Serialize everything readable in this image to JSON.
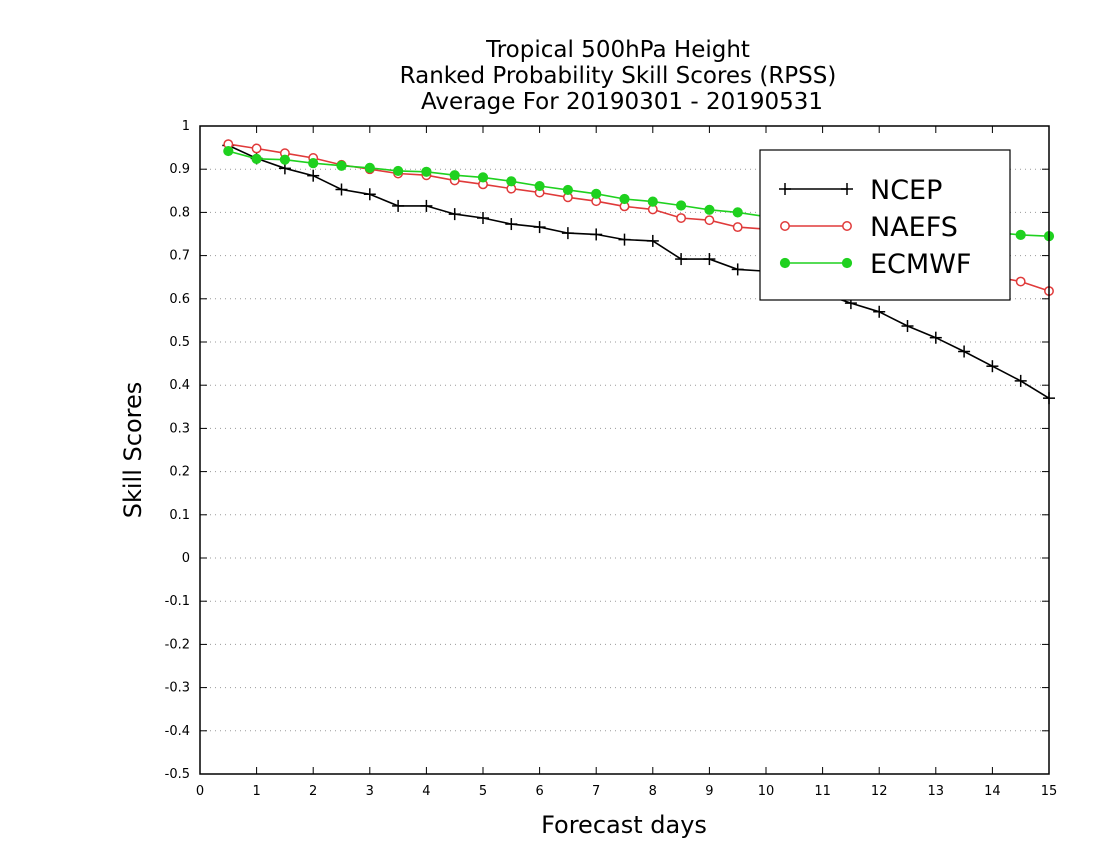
{
  "chart_data": {
    "type": "line",
    "title": [
      "Tropical 500hPa Height",
      "Ranked Probability Skill Scores (RPSS)",
      "Average For 20190301 - 20190531"
    ],
    "xlabel": "Forecast days",
    "ylabel": "Skill Scores",
    "xlim": [
      0,
      15
    ],
    "ylim": [
      -0.5,
      1
    ],
    "xticks": [
      0,
      1,
      2,
      3,
      4,
      5,
      6,
      7,
      8,
      9,
      10,
      11,
      12,
      13,
      14,
      15
    ],
    "xtick_labels": [
      "0",
      "1",
      "2",
      "3",
      "4",
      "5",
      "6",
      "7",
      "8",
      "9",
      "10",
      "11",
      "12",
      "13",
      "14",
      "15"
    ],
    "yticks": [
      1,
      0.9,
      0.8,
      0.7,
      0.6,
      0.5,
      0.4,
      0.3,
      0.2,
      0.1,
      0,
      -0.1,
      -0.2,
      -0.3,
      -0.4,
      -0.5
    ],
    "ytick_labels": [
      "1",
      "0.9",
      "0.8",
      "0.7",
      "0.6",
      "0.5",
      "0.4",
      "0.3",
      "0.2",
      "0.1",
      "0",
      "-0.1",
      "-0.2",
      "-0.3",
      "-0.4",
      "-0.5"
    ],
    "grid": "horizontal dotted",
    "legend_position": "top-right",
    "x": [
      0.5,
      1,
      1.5,
      2,
      2.5,
      3,
      3.5,
      4,
      4.5,
      5,
      5.5,
      6,
      6.5,
      7,
      7.5,
      8,
      8.5,
      9,
      9.5,
      10,
      10.5,
      11,
      11.5,
      12,
      12.5,
      13,
      13.5,
      14,
      14.5,
      15
    ],
    "series": [
      {
        "name": "NCEP",
        "color": "#000000",
        "marker": "plus",
        "values": [
          0.955,
          0.925,
          0.902,
          0.885,
          0.853,
          0.842,
          0.815,
          0.815,
          0.796,
          0.787,
          0.773,
          0.766,
          0.752,
          0.749,
          0.737,
          0.734,
          0.692,
          0.692,
          0.668,
          0.664,
          0.641,
          0.612,
          0.59,
          0.57,
          0.537,
          0.51,
          0.478,
          0.444,
          0.41,
          0.37
        ]
      },
      {
        "name": "NAEFS",
        "color": "#e03a3a",
        "marker": "open-circle",
        "values": [
          0.958,
          0.948,
          0.937,
          0.926,
          0.91,
          0.9,
          0.89,
          0.886,
          0.874,
          0.865,
          0.855,
          0.846,
          0.835,
          0.826,
          0.814,
          0.807,
          0.787,
          0.782,
          0.766,
          0.761,
          0.744,
          0.73,
          0.715,
          0.7,
          0.688,
          0.675,
          0.664,
          0.652,
          0.64,
          0.618
        ]
      },
      {
        "name": "ECMWF",
        "color": "#1fd11f",
        "marker": "filled-circle",
        "values": [
          0.942,
          0.924,
          0.922,
          0.914,
          0.908,
          0.903,
          0.896,
          0.894,
          0.886,
          0.881,
          0.872,
          0.861,
          0.852,
          0.843,
          0.831,
          0.825,
          0.816,
          0.806,
          0.8,
          0.79,
          0.785,
          0.78,
          0.778,
          0.773,
          0.766,
          0.763,
          0.758,
          0.754,
          0.748,
          0.745
        ]
      }
    ]
  }
}
